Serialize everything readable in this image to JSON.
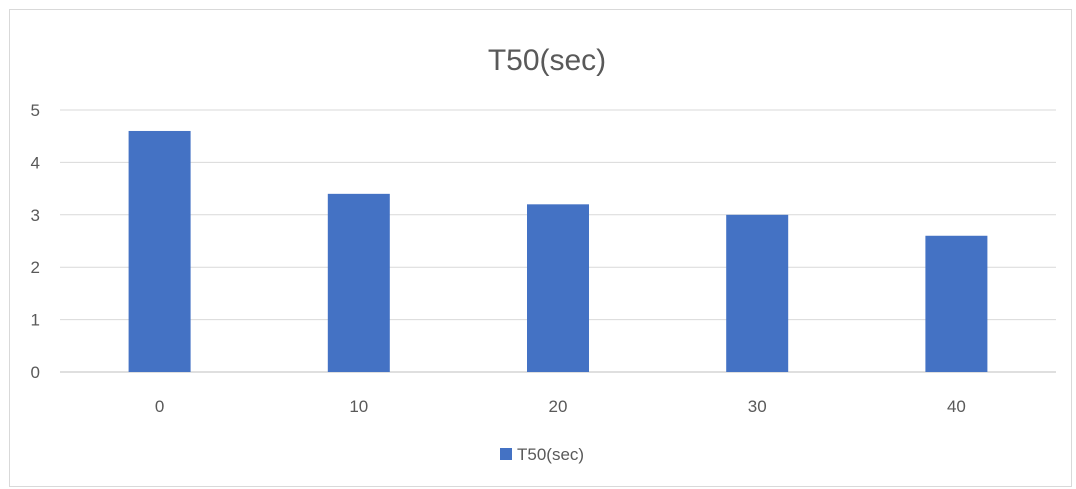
{
  "chart_data": {
    "type": "bar",
    "title": "T50(sec)",
    "categories": [
      "0",
      "10",
      "20",
      "30",
      "40"
    ],
    "series": [
      {
        "name": "T50(sec)",
        "values": [
          4.6,
          3.4,
          3.2,
          3.0,
          2.6
        ],
        "color": "#4472c4"
      }
    ],
    "xlabel": "",
    "ylabel": "",
    "ylim": [
      0,
      5
    ],
    "yticks": [
      0,
      1,
      2,
      3,
      4,
      5
    ],
    "grid": true,
    "legend": "bottom"
  }
}
